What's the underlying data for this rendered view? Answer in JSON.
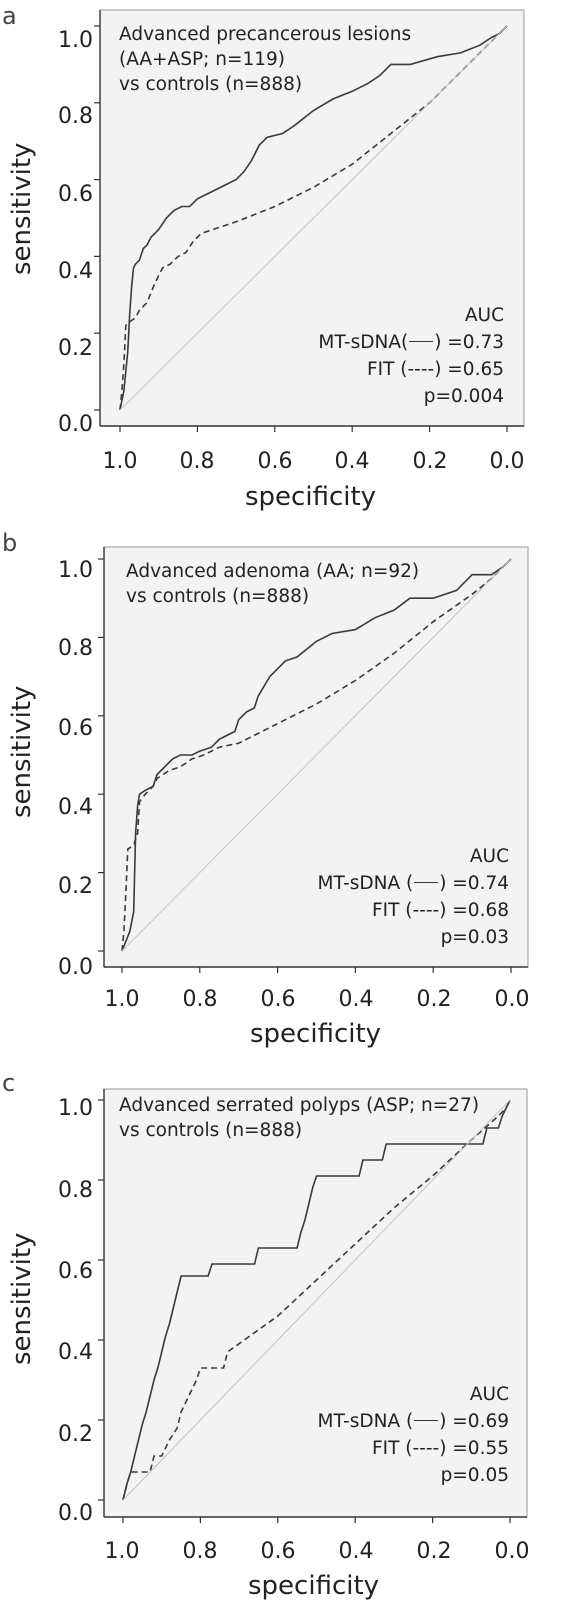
{
  "chart_data": [
    {
      "type": "line",
      "panel_letter": "a",
      "annotation": [
        "Advanced precancerous lesions",
        "(AA+ASP; n=119)",
        "vs controls (n=888)"
      ],
      "xlabel": "specificity",
      "ylabel": "sensitivity",
      "xlim": [
        1.0,
        0.0
      ],
      "ylim": [
        0.0,
        1.0
      ],
      "x_reversed": true,
      "xticks": [
        "1.0",
        "0.8",
        "0.6",
        "0.4",
        "0.2",
        "0.0"
      ],
      "yticks": [
        "0.0",
        "0.2",
        "0.4",
        "0.6",
        "0.8",
        "1.0"
      ],
      "auc_header": "AUC",
      "auc_lines": [
        {
          "pre": "MT-sDNA(",
          "post": ") =0.73",
          "indicator": "solid"
        },
        {
          "pre": "FIT (----) =0.65",
          "post": "",
          "indicator": "none"
        },
        {
          "pre": "p=0.004",
          "post": "",
          "indicator": "none"
        }
      ],
      "series": [
        {
          "name": "MT-sDNA",
          "style": "solid",
          "points": [
            [
              1.0,
              0.0
            ],
            [
              0.99,
              0.05
            ],
            [
              0.98,
              0.15
            ],
            [
              0.975,
              0.25
            ],
            [
              0.97,
              0.32
            ],
            [
              0.965,
              0.37
            ],
            [
              0.96,
              0.38
            ],
            [
              0.95,
              0.39
            ],
            [
              0.94,
              0.42
            ],
            [
              0.93,
              0.43
            ],
            [
              0.92,
              0.45
            ],
            [
              0.9,
              0.47
            ],
            [
              0.88,
              0.5
            ],
            [
              0.86,
              0.52
            ],
            [
              0.84,
              0.53
            ],
            [
              0.82,
              0.53
            ],
            [
              0.8,
              0.55
            ],
            [
              0.78,
              0.56
            ],
            [
              0.76,
              0.57
            ],
            [
              0.72,
              0.59
            ],
            [
              0.7,
              0.6
            ],
            [
              0.68,
              0.62
            ],
            [
              0.66,
              0.65
            ],
            [
              0.64,
              0.69
            ],
            [
              0.62,
              0.71
            ],
            [
              0.58,
              0.72
            ],
            [
              0.55,
              0.74
            ],
            [
              0.5,
              0.78
            ],
            [
              0.45,
              0.81
            ],
            [
              0.4,
              0.83
            ],
            [
              0.36,
              0.85
            ],
            [
              0.33,
              0.87
            ],
            [
              0.3,
              0.9
            ],
            [
              0.25,
              0.9
            ],
            [
              0.18,
              0.92
            ],
            [
              0.12,
              0.93
            ],
            [
              0.07,
              0.95
            ],
            [
              0.04,
              0.97
            ],
            [
              0.02,
              0.98
            ],
            [
              0.0,
              1.0
            ]
          ]
        },
        {
          "name": "FIT",
          "style": "dashed",
          "points": [
            [
              1.0,
              0.0
            ],
            [
              0.995,
              0.05
            ],
            [
              0.99,
              0.12
            ],
            [
              0.985,
              0.22
            ],
            [
              0.975,
              0.23
            ],
            [
              0.96,
              0.24
            ],
            [
              0.95,
              0.26
            ],
            [
              0.93,
              0.28
            ],
            [
              0.91,
              0.33
            ],
            [
              0.89,
              0.37
            ],
            [
              0.87,
              0.38
            ],
            [
              0.85,
              0.4
            ],
            [
              0.83,
              0.41
            ],
            [
              0.81,
              0.44
            ],
            [
              0.79,
              0.46
            ],
            [
              0.76,
              0.47
            ],
            [
              0.7,
              0.49
            ],
            [
              0.6,
              0.53
            ],
            [
              0.5,
              0.58
            ],
            [
              0.4,
              0.64
            ],
            [
              0.3,
              0.72
            ],
            [
              0.2,
              0.8
            ],
            [
              0.1,
              0.9
            ],
            [
              0.05,
              0.95
            ],
            [
              0.0,
              1.0
            ]
          ]
        },
        {
          "name": "reference",
          "style": "diagonal",
          "points": [
            [
              1.0,
              0.0
            ],
            [
              0.0,
              1.0
            ]
          ]
        }
      ]
    },
    {
      "type": "line",
      "panel_letter": "b",
      "annotation": [
        "Advanced adenoma (AA; n=92)",
        "vs controls (n=888)"
      ],
      "xlabel": "specificity",
      "ylabel": "sensitivity",
      "xlim": [
        1.0,
        0.0
      ],
      "ylim": [
        0.0,
        1.0
      ],
      "x_reversed": true,
      "xticks": [
        "1.0",
        "0.8",
        "0.6",
        "0.4",
        "0.2",
        "0.0"
      ],
      "yticks": [
        "0.0",
        "0.2",
        "0.4",
        "0.6",
        "0.8",
        "1.0"
      ],
      "auc_header": "AUC",
      "auc_lines": [
        {
          "pre": "MT-sDNA (",
          "post": ") =0.74",
          "indicator": "solid"
        },
        {
          "pre": "FIT (----) =0.68",
          "post": "",
          "indicator": "none"
        },
        {
          "pre": "p=0.03",
          "post": "",
          "indicator": "none"
        }
      ],
      "series": [
        {
          "name": "MT-sDNA",
          "style": "solid",
          "points": [
            [
              1.0,
              0.0
            ],
            [
              0.98,
              0.05
            ],
            [
              0.97,
              0.1
            ],
            [
              0.965,
              0.3
            ],
            [
              0.96,
              0.37
            ],
            [
              0.955,
              0.4
            ],
            [
              0.94,
              0.41
            ],
            [
              0.92,
              0.42
            ],
            [
              0.91,
              0.45
            ],
            [
              0.89,
              0.47
            ],
            [
              0.87,
              0.49
            ],
            [
              0.85,
              0.5
            ],
            [
              0.82,
              0.5
            ],
            [
              0.8,
              0.51
            ],
            [
              0.77,
              0.52
            ],
            [
              0.75,
              0.54
            ],
            [
              0.73,
              0.55
            ],
            [
              0.71,
              0.56
            ],
            [
              0.7,
              0.59
            ],
            [
              0.68,
              0.61
            ],
            [
              0.66,
              0.62
            ],
            [
              0.65,
              0.65
            ],
            [
              0.62,
              0.7
            ],
            [
              0.58,
              0.74
            ],
            [
              0.55,
              0.75
            ],
            [
              0.5,
              0.79
            ],
            [
              0.46,
              0.81
            ],
            [
              0.4,
              0.82
            ],
            [
              0.35,
              0.85
            ],
            [
              0.3,
              0.87
            ],
            [
              0.26,
              0.9
            ],
            [
              0.2,
              0.9
            ],
            [
              0.14,
              0.92
            ],
            [
              0.1,
              0.96
            ],
            [
              0.05,
              0.96
            ],
            [
              0.02,
              0.98
            ],
            [
              0.0,
              1.0
            ]
          ]
        },
        {
          "name": "FIT",
          "style": "dashed",
          "points": [
            [
              1.0,
              0.0
            ],
            [
              0.995,
              0.05
            ],
            [
              0.99,
              0.15
            ],
            [
              0.985,
              0.26
            ],
            [
              0.97,
              0.27
            ],
            [
              0.96,
              0.3
            ],
            [
              0.955,
              0.38
            ],
            [
              0.94,
              0.4
            ],
            [
              0.92,
              0.42
            ],
            [
              0.91,
              0.44
            ],
            [
              0.88,
              0.46
            ],
            [
              0.85,
              0.47
            ],
            [
              0.82,
              0.49
            ],
            [
              0.79,
              0.5
            ],
            [
              0.75,
              0.52
            ],
            [
              0.7,
              0.53
            ],
            [
              0.6,
              0.58
            ],
            [
              0.5,
              0.63
            ],
            [
              0.4,
              0.69
            ],
            [
              0.3,
              0.76
            ],
            [
              0.2,
              0.84
            ],
            [
              0.1,
              0.91
            ],
            [
              0.05,
              0.95
            ],
            [
              0.0,
              1.0
            ]
          ]
        },
        {
          "name": "reference",
          "style": "diagonal",
          "points": [
            [
              1.0,
              0.0
            ],
            [
              0.0,
              1.0
            ]
          ]
        }
      ]
    },
    {
      "type": "line",
      "panel_letter": "c",
      "annotation": [
        "Advanced serrated polyps (ASP; n=27)",
        "vs controls (n=888)"
      ],
      "xlabel": "specificity",
      "ylabel": "sensitivity",
      "xlim": [
        1.0,
        0.0
      ],
      "ylim": [
        0.0,
        1.0
      ],
      "x_reversed": true,
      "xticks": [
        "1.0",
        "0.8",
        "0.6",
        "0.4",
        "0.2",
        "0.0"
      ],
      "yticks": [
        "0.0",
        "0.2",
        "0.4",
        "0.6",
        "0.8",
        "1.0"
      ],
      "auc_header": "AUC",
      "auc_lines": [
        {
          "pre": "MT-sDNA (",
          "post": ") =0.69",
          "indicator": "solid"
        },
        {
          "pre": "FIT (----) =0.55",
          "post": "",
          "indicator": "none"
        },
        {
          "pre": "p=0.05",
          "post": "",
          "indicator": "none"
        }
      ],
      "series": [
        {
          "name": "MT-sDNA",
          "style": "solid",
          "points": [
            [
              1.0,
              0.0
            ],
            [
              0.99,
              0.04
            ],
            [
              0.98,
              0.07
            ],
            [
              0.97,
              0.11
            ],
            [
              0.96,
              0.15
            ],
            [
              0.95,
              0.19
            ],
            [
              0.94,
              0.22
            ],
            [
              0.93,
              0.26
            ],
            [
              0.92,
              0.3
            ],
            [
              0.91,
              0.33
            ],
            [
              0.9,
              0.37
            ],
            [
              0.89,
              0.41
            ],
            [
              0.88,
              0.44
            ],
            [
              0.87,
              0.48
            ],
            [
              0.86,
              0.52
            ],
            [
              0.85,
              0.56
            ],
            [
              0.78,
              0.56
            ],
            [
              0.77,
              0.59
            ],
            [
              0.66,
              0.59
            ],
            [
              0.65,
              0.63
            ],
            [
              0.55,
              0.63
            ],
            [
              0.54,
              0.67
            ],
            [
              0.53,
              0.7
            ],
            [
              0.52,
              0.74
            ],
            [
              0.51,
              0.78
            ],
            [
              0.5,
              0.81
            ],
            [
              0.39,
              0.81
            ],
            [
              0.38,
              0.85
            ],
            [
              0.33,
              0.85
            ],
            [
              0.32,
              0.89
            ],
            [
              0.07,
              0.89
            ],
            [
              0.06,
              0.93
            ],
            [
              0.03,
              0.93
            ],
            [
              0.02,
              0.96
            ],
            [
              0.01,
              0.98
            ],
            [
              0.0,
              1.0
            ]
          ]
        },
        {
          "name": "FIT",
          "style": "dashed",
          "points": [
            [
              1.0,
              0.0
            ],
            [
              0.99,
              0.04
            ],
            [
              0.98,
              0.07
            ],
            [
              0.93,
              0.07
            ],
            [
              0.92,
              0.11
            ],
            [
              0.9,
              0.11
            ],
            [
              0.88,
              0.15
            ],
            [
              0.86,
              0.18
            ],
            [
              0.85,
              0.22
            ],
            [
              0.83,
              0.26
            ],
            [
              0.81,
              0.3
            ],
            [
              0.8,
              0.33
            ],
            [
              0.74,
              0.33
            ],
            [
              0.73,
              0.37
            ],
            [
              0.6,
              0.46
            ],
            [
              0.5,
              0.55
            ],
            [
              0.4,
              0.64
            ],
            [
              0.3,
              0.73
            ],
            [
              0.2,
              0.81
            ],
            [
              0.1,
              0.9
            ],
            [
              0.03,
              0.96
            ],
            [
              0.01,
              0.98
            ],
            [
              0.0,
              1.0
            ]
          ]
        },
        {
          "name": "reference",
          "style": "diagonal",
          "points": [
            [
              1.0,
              0.0
            ],
            [
              0.0,
              1.0
            ]
          ]
        }
      ]
    }
  ]
}
